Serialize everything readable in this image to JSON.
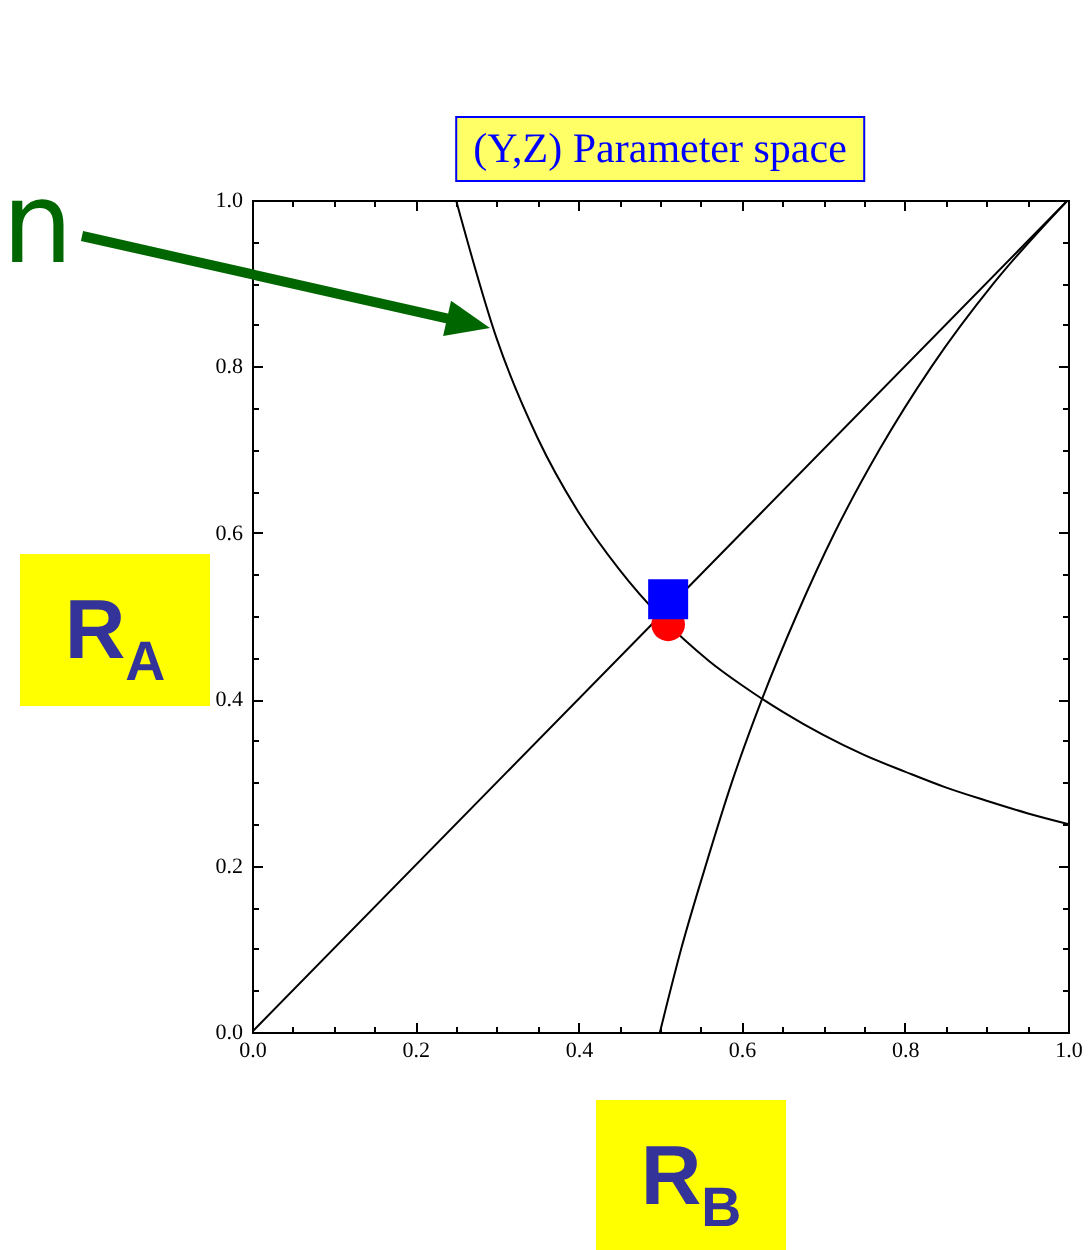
{
  "chart_data": {
    "type": "line",
    "title": "(Y,Z) Parameter space",
    "xlabel": "R$_{B}$",
    "ylabel": "R$_{A}$",
    "annotations": [
      "n"
    ],
    "xlim": [
      0,
      1
    ],
    "ylim": [
      0,
      1
    ],
    "xticks": [
      {
        "value": 0,
        "label": "0.0"
      },
      {
        "value": 0.05,
        "label": null
      },
      {
        "value": 0.1,
        "label": null
      },
      {
        "value": 0.15,
        "label": null
      },
      0.2,
      {
        "value": 0.25,
        "label": null
      },
      {
        "value": 0.3,
        "label": null
      },
      {
        "value": 0.35,
        "label": null
      },
      0.4,
      {
        "value": 0.45,
        "label": null
      },
      {
        "value": 0.5,
        "label": null
      },
      {
        "value": 0.55,
        "label": null
      },
      0.6,
      {
        "value": 0.65,
        "label": null
      },
      {
        "value": 0.7,
        "label": null
      },
      {
        "value": 0.75,
        "label": null
      },
      0.8,
      {
        "value": 0.85,
        "label": null
      },
      {
        "value": 0.9,
        "label": null
      },
      {
        "value": 0.95,
        "label": null
      },
      {
        "value": 1,
        "label": "1.0"
      }
    ],
    "yticks": [
      {
        "value": 0,
        "label": "0.0"
      },
      {
        "value": 0.05,
        "label": null
      },
      {
        "value": 0.1,
        "label": null
      },
      {
        "value": 0.15,
        "label": null
      },
      0.2,
      {
        "value": 0.25,
        "label": null
      },
      {
        "value": 0.3,
        "label": null
      },
      {
        "value": 0.35,
        "label": null
      },
      0.4,
      {
        "value": 0.45,
        "label": null
      },
      {
        "value": 0.5,
        "label": null
      },
      {
        "value": 0.55,
        "label": null
      },
      0.6,
      {
        "value": 0.65,
        "label": null
      },
      {
        "value": 0.7,
        "label": null
      },
      {
        "value": 0.75,
        "label": null
      },
      0.8,
      {
        "value": 0.85,
        "label": null
      },
      {
        "value": 0.9,
        "label": null
      },
      {
        "value": 0.95,
        "label": null
      },
      {
        "value": 1,
        "label": "1.0"
      }
    ],
    "series": [
      {
        "color": "#000000",
        "x": [
          0,
          1
        ],
        "values": [
          0,
          1
        ]
      },
      {
        "color": "#000000",
        "x": [
          0.25,
          0.3,
          0.35,
          0.4,
          0.45,
          0.56,
          0.6,
          0.65,
          0.7,
          0.75,
          0.8,
          0.85,
          0.9,
          0.95,
          1
        ],
        "values": [
          1,
          0.833,
          0.714,
          0.625,
          0.556,
          0.446,
          0.417,
          0.385,
          0.357,
          0.333,
          0.313,
          0.294,
          0.278,
          0.263,
          0.25
        ]
      },
      {
        "color": "#000000",
        "x": [
          0.5,
          0.526,
          0.556,
          0.588,
          0.625,
          0.667,
          0.714,
          0.769,
          0.833,
          0.909,
          1
        ],
        "values": [
          0,
          0.1,
          0.2,
          0.3,
          0.4,
          0.5,
          0.6,
          0.7,
          0.8,
          0.9,
          1
        ]
      },
      {
        "type": "scatter",
        "color": "#ff0000",
        "marker": "circle",
        "x": [
          0.51
        ],
        "values": [
          0.49
        ]
      },
      {
        "type": "scatter",
        "color": "#0000ff",
        "marker": "square",
        "x": [
          0.51
        ],
        "values": [
          0.52
        ]
      }
    ]
  }
}
